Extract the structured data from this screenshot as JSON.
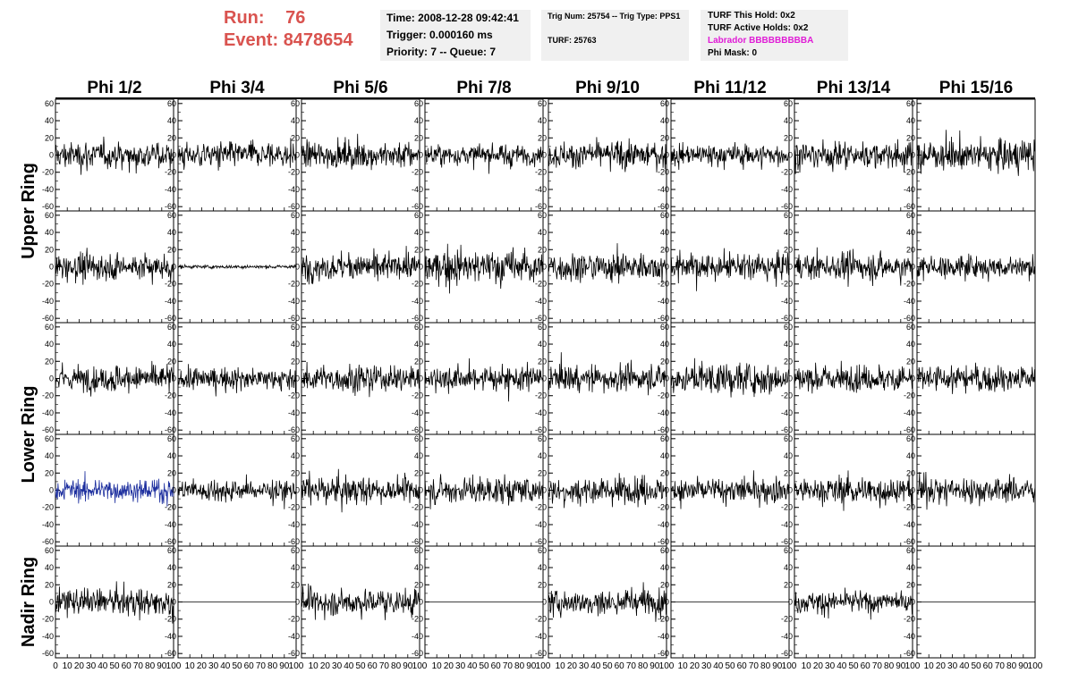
{
  "header": {
    "run_label": "Run:",
    "run_value": "76",
    "event_label": "Event:",
    "event_value": "8478654",
    "time": "Time: 2008-12-28 09:42:41",
    "trigger": "Trigger: 0.000160 ms",
    "priority": "Priority: 7 -- Queue: 7",
    "trig_num": "Trig Num: 25754 -- Trig Type: PPS1",
    "turf": "TURF: 25763",
    "turf_this_hold": "TURF This Hold: 0x2",
    "turf_active_holds": "TURF Active Holds: 0x2",
    "labrador": "Labrador BBBBBBBBBA",
    "phi_mask": "Phi Mask: 0"
  },
  "chart_data": {
    "type": "line",
    "columns": [
      "Phi 1/2",
      "Phi 3/4",
      "Phi 5/6",
      "Phi 7/8",
      "Phi 9/10",
      "Phi 11/12",
      "Phi 13/14",
      "Phi 15/16"
    ],
    "row_groups": [
      "Upper Ring",
      "Lower Ring",
      "Nadir Ring"
    ],
    "rows": 5,
    "xlim": [
      0,
      100
    ],
    "ylim": [
      -65,
      65
    ],
    "y_ticks": [
      -60,
      -40,
      -20,
      0,
      20,
      40,
      60
    ],
    "x_ticks": [
      0,
      10,
      20,
      30,
      40,
      50,
      60,
      70,
      80,
      90,
      100
    ],
    "grid": false,
    "panels": [
      [
        "noise ~15",
        "noise ~15",
        "noise ~15",
        "noise ~12",
        "noise ~15",
        "noise ~13",
        "noise ~15",
        "noise ~18"
      ],
      [
        "noise ~15",
        "flat ~2",
        "noise ~15",
        "noise ~20",
        "noise ~17",
        "noise ~15",
        "noise ~15",
        "noise ~13"
      ],
      [
        "noise ~15",
        "noise ~12",
        "noise ~15",
        "noise ~15",
        "noise ~15",
        "noise ~17",
        "noise ~15",
        "noise ~15"
      ],
      [
        "highlighted noise ~12",
        "noise ~12",
        "noise ~15",
        "noise ~15",
        "noise ~15",
        "noise ~15",
        "noise ~15",
        "noise ~15"
      ],
      [
        "noise ~15",
        "flat 0",
        "noise ~15",
        "flat 0",
        "noise ~15",
        "flat 0",
        "noise ~12",
        "flat 0"
      ]
    ],
    "colors": {
      "trace": "#000000",
      "highlight_trace": "#1c2e9e",
      "title_run": "#d9534f",
      "labrador": "#e01bd6"
    }
  }
}
